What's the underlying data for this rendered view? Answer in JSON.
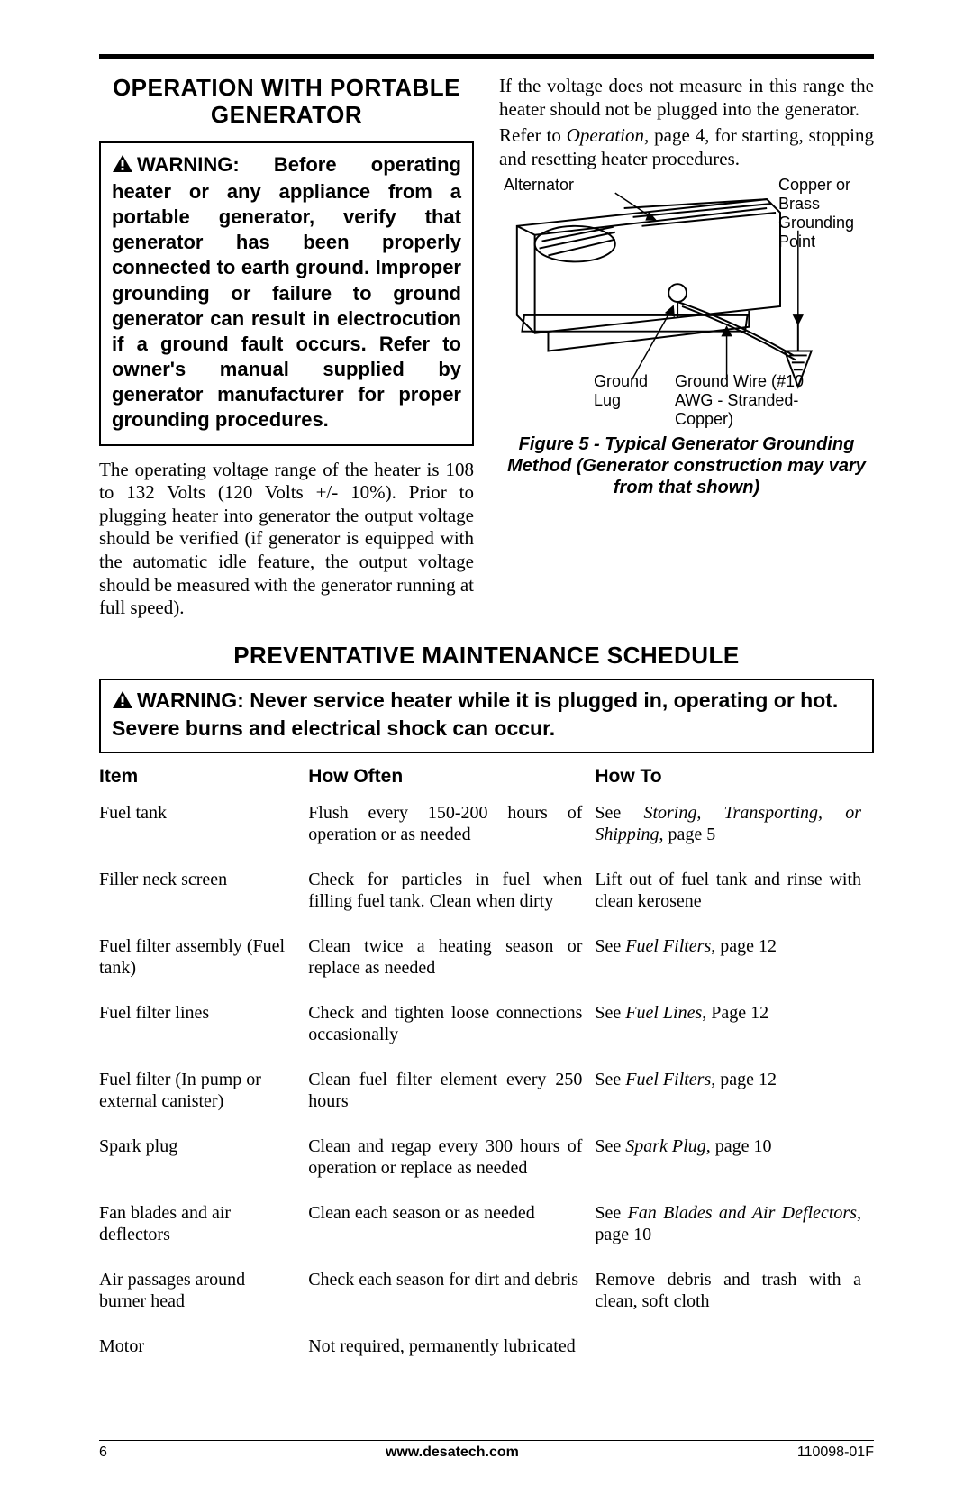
{
  "section1": {
    "heading": "OPERATION WITH PORTABLE GENERATOR",
    "warning": "WARNING: Before operating heater or any appliance from a portable generator, verify that generator has been properly connected to earth ground. Improper grounding or failure to ground generator can result in electrocution if a ground fault occurs. Refer to owner's manual supplied by generator manufacturer for proper grounding procedures.",
    "body_left": "The operating voltage range of the heater is 108 to 132 Volts (120 Volts +/- 10%). Prior to plugging heater into generator the output voltage should be verified (if generator is equipped with the automatic idle feature, the output voltage should be measured with the generator running at full speed).",
    "body_right1": "If the voltage does not measure in this range the heater should not be plugged into the generator.",
    "body_right2_a": "Refer to ",
    "body_right2_b": "Operation",
    "body_right2_c": ", page 4, for starting, stopping and resetting heater procedures.",
    "fig_labels": {
      "alternator": "Alternator",
      "copper": "Copper or Brass Grounding Point",
      "ground_lug": "Ground Lug",
      "ground_wire": "Ground Wire (#10 AWG - Stranded-Copper)"
    },
    "caption": "Figure 5 - Typical Generator Grounding Method (Generator construction may vary from that shown)"
  },
  "section2": {
    "heading": "PREVENTATIVE MAINTENANCE SCHEDULE",
    "warning": "WARNING: Never service heater while it is plugged in, operating or hot. Severe burns and electrical shock can occur.",
    "headers": {
      "c1": "Item",
      "c2": "How Often",
      "c3": "How To"
    },
    "rows": [
      {
        "item": "Fuel tank",
        "how_often": "Flush every 150-200 hours of operation or as needed",
        "how_to_a": "See ",
        "how_to_i": "Storing, Transporting, or Shipping",
        "how_to_b": ", page 5"
      },
      {
        "item": "Filler neck screen",
        "how_often": "Check for particles in fuel when filling fuel tank. Clean when dirty",
        "how_to_a": "Lift out of fuel tank and rinse with clean kerosene",
        "how_to_i": "",
        "how_to_b": ""
      },
      {
        "item": "Fuel filter assembly (Fuel tank)",
        "how_often": "Clean twice a heating season or replace as needed",
        "how_to_a": "See ",
        "how_to_i": "Fuel Filters",
        "how_to_b": ", page 12"
      },
      {
        "item": "Fuel filter lines",
        "how_often": "Check and tighten loose connections occasionally",
        "how_to_a": "See ",
        "how_to_i": "Fuel Lines",
        "how_to_b": ", Page 12"
      },
      {
        "item": "Fuel filter (In pump or external canister)",
        "how_often": "Clean fuel filter element every 250 hours",
        "how_to_a": "See ",
        "how_to_i": "Fuel Filters",
        "how_to_b": ", page 12"
      },
      {
        "item": "Spark plug",
        "how_often": "Clean and regap every 300 hours of operation or replace as needed",
        "how_to_a": "See ",
        "how_to_i": "Spark Plug",
        "how_to_b": ", page 10"
      },
      {
        "item": "Fan blades and air deflectors",
        "how_often": "Clean each season or as needed",
        "how_to_a": "See ",
        "how_to_i": "Fan Blades and Air Deflectors",
        "how_to_b": ", page 10"
      },
      {
        "item": "Air passages around burner head",
        "how_often": "Check each season for dirt and debris",
        "how_to_a": "Remove debris and trash with a clean, soft cloth",
        "how_to_i": "",
        "how_to_b": ""
      },
      {
        "item": "Motor",
        "how_often": "Not required, permanently lubricated",
        "how_to_a": "",
        "how_to_i": "",
        "how_to_b": ""
      }
    ]
  },
  "footer": {
    "page": "6",
    "url": "www.desatech.com",
    "docnum": "110098-01F"
  },
  "colors": {
    "text": "#000000",
    "background": "#ffffff",
    "rule": "#000000"
  }
}
